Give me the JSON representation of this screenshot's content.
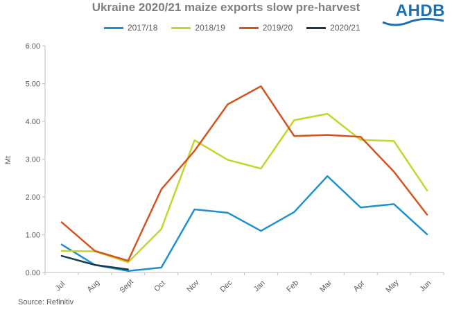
{
  "chart_data": {
    "type": "line",
    "title": "Ukraine 2020/21 maize exports slow pre-harvest",
    "ylabel": "Mt",
    "xlabel": "",
    "ylim": [
      0,
      6
    ],
    "yticks": [
      "0.00",
      "1.00",
      "2.00",
      "3.00",
      "4.00",
      "5.00",
      "6.00"
    ],
    "categories": [
      "Jul",
      "Aug",
      "Sept",
      "Oct",
      "Nov",
      "Dec",
      "Jan",
      "Feb",
      "Mar",
      "Apr",
      "May",
      "Jun"
    ],
    "grid": false,
    "legend_position": "top",
    "series": [
      {
        "name": "2017/18",
        "color": "#1e90d0",
        "values": [
          0.74,
          0.2,
          0.04,
          0.13,
          1.67,
          1.58,
          1.1,
          1.6,
          2.55,
          1.72,
          1.81,
          1.01
        ]
      },
      {
        "name": "2018/19",
        "color": "#c3d62a",
        "values": [
          0.57,
          0.56,
          0.27,
          1.15,
          3.5,
          2.98,
          2.75,
          4.03,
          4.2,
          3.51,
          3.48,
          2.17
        ]
      },
      {
        "name": "2019/20",
        "color": "#d4531e",
        "values": [
          1.33,
          0.57,
          0.31,
          2.2,
          3.22,
          4.45,
          4.93,
          3.61,
          3.64,
          3.59,
          2.67,
          1.53
        ]
      },
      {
        "name": "2020/21",
        "color": "#173a4f",
        "values": [
          0.44,
          0.2,
          0.08,
          null,
          null,
          null,
          null,
          null,
          null,
          null,
          null,
          null
        ]
      }
    ]
  },
  "logo": {
    "text": "AHDB"
  },
  "source": "Source: Refinitiv"
}
